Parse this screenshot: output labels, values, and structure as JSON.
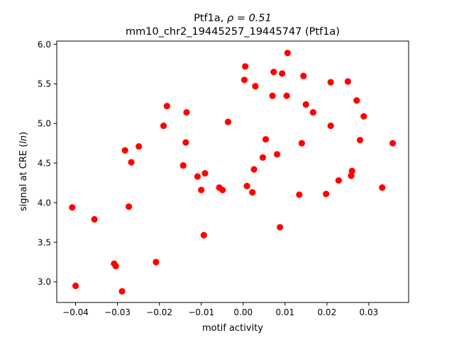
{
  "chart_data": {
    "type": "scatter",
    "title_line1_prefix": "Ptf1a, ",
    "title_line1_math": "ρ = 0.51",
    "title_line2": "mm10_chr2_19445257_19445747 (Ptf1a)",
    "xlabel": "motif activity",
    "ylabel_prefix": "signal at CRE (",
    "ylabel_italic": "ln",
    "ylabel_suffix": ")",
    "xlim": [
      -0.0445,
      0.0395
    ],
    "ylim": [
      2.74,
      6.04
    ],
    "xticks": [
      -0.04,
      -0.03,
      -0.02,
      -0.01,
      0.0,
      0.01,
      0.02,
      0.03
    ],
    "xtick_labels": [
      "−0.04",
      "−0.03",
      "−0.02",
      "−0.01",
      "0.00",
      "0.01",
      "0.02",
      "0.03"
    ],
    "yticks": [
      3.0,
      3.5,
      4.0,
      4.5,
      5.0,
      5.5,
      6.0
    ],
    "ytick_labels": [
      "3.0",
      "3.5",
      "4.0",
      "4.5",
      "5.0",
      "5.5",
      "6.0"
    ],
    "marker_color": "#ff0000",
    "grid": false,
    "points": [
      [
        -0.0408,
        3.94
      ],
      [
        -0.04,
        2.95
      ],
      [
        -0.0355,
        3.79
      ],
      [
        -0.0308,
        3.23
      ],
      [
        -0.0304,
        3.2
      ],
      [
        -0.0289,
        2.88
      ],
      [
        -0.0282,
        4.66
      ],
      [
        -0.0273,
        3.95
      ],
      [
        -0.0267,
        4.51
      ],
      [
        -0.0249,
        4.71
      ],
      [
        -0.0208,
        3.25
      ],
      [
        -0.019,
        4.97
      ],
      [
        -0.0182,
        5.22
      ],
      [
        -0.0143,
        4.47
      ],
      [
        -0.0137,
        4.76
      ],
      [
        -0.0135,
        5.14
      ],
      [
        -0.0109,
        4.33
      ],
      [
        -0.01,
        4.16
      ],
      [
        -0.0094,
        3.59
      ],
      [
        -0.0091,
        4.37
      ],
      [
        -0.0057,
        4.19
      ],
      [
        -0.0049,
        4.16
      ],
      [
        -0.0036,
        5.02
      ],
      [
        0.0003,
        5.55
      ],
      [
        0.0005,
        5.72
      ],
      [
        0.0009,
        4.21
      ],
      [
        0.0022,
        4.13
      ],
      [
        0.0026,
        4.42
      ],
      [
        0.0029,
        5.47
      ],
      [
        0.0047,
        4.57
      ],
      [
        0.0054,
        4.8
      ],
      [
        0.007,
        5.35
      ],
      [
        0.0073,
        5.65
      ],
      [
        0.0081,
        4.61
      ],
      [
        0.0088,
        3.69
      ],
      [
        0.0093,
        5.63
      ],
      [
        0.0104,
        5.35
      ],
      [
        0.0106,
        5.89
      ],
      [
        0.0134,
        4.1
      ],
      [
        0.014,
        4.75
      ],
      [
        0.0144,
        5.6
      ],
      [
        0.015,
        5.24
      ],
      [
        0.0167,
        5.14
      ],
      [
        0.0198,
        4.11
      ],
      [
        0.0209,
        5.52
      ],
      [
        0.0209,
        4.97
      ],
      [
        0.0228,
        4.28
      ],
      [
        0.025,
        5.53
      ],
      [
        0.0258,
        4.34
      ],
      [
        0.026,
        4.4
      ],
      [
        0.0271,
        5.29
      ],
      [
        0.0279,
        4.79
      ],
      [
        0.0288,
        5.09
      ],
      [
        0.0332,
        4.19
      ],
      [
        0.0357,
        4.75
      ]
    ]
  }
}
